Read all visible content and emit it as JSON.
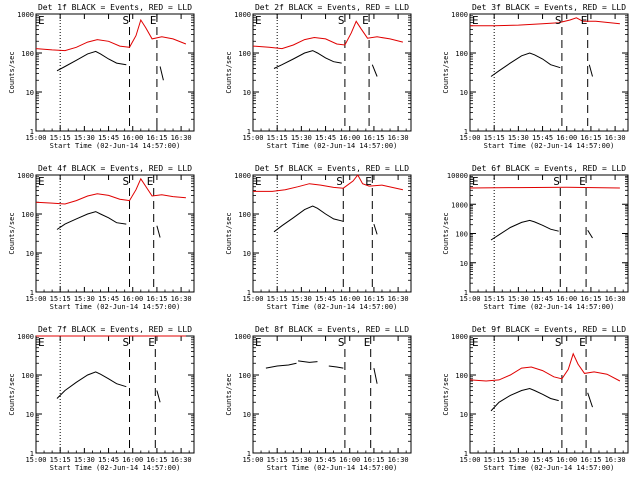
{
  "figure": {
    "xlabel": "Start Time (02-Jun-14 14:57:00)",
    "ylabel": "Counts/sec",
    "colors": {
      "events": "#000000",
      "lld": "#e00000",
      "axes": "#000000",
      "background": "#ffffff"
    }
  },
  "chart_data": [
    {
      "type": "line",
      "title": "Det 1f BLACK = Events, RED = LLD",
      "x_ticks": [
        "15:00",
        "15:15",
        "15:30",
        "15:45",
        "16:00",
        "16:15",
        "16:30"
      ],
      "y_ticks": [
        "1",
        "10",
        "100",
        "1000"
      ],
      "ylim": [
        1,
        1000
      ],
      "yscale": "log",
      "markers": [
        {
          "label": "E",
          "at": "15:00"
        },
        {
          "label": "S",
          "at": "15:58"
        },
        {
          "label": "E",
          "at": "16:15"
        }
      ],
      "dotted_at": "15:15",
      "dashed_at": [
        "15:58",
        "16:15"
      ],
      "series": [
        {
          "color": "red",
          "x": [
            "15:00",
            "15:10",
            "15:18",
            "15:25",
            "15:32",
            "15:38",
            "15:45",
            "15:52",
            "15:58",
            "16:02",
            "16:05",
            "16:08",
            "16:12",
            "16:18",
            "16:25",
            "16:33"
          ],
          "y": [
            130,
            120,
            115,
            140,
            190,
            220,
            200,
            150,
            140,
            280,
            700,
            450,
            230,
            260,
            230,
            170
          ]
        },
        {
          "color": "black",
          "x": [
            "15:13",
            "15:18",
            "15:25",
            "15:32",
            "15:37",
            "15:40",
            "15:45",
            "15:50",
            "15:56"
          ],
          "y": [
            35,
            45,
            65,
            95,
            110,
            95,
            70,
            55,
            50
          ]
        },
        {
          "color": "black",
          "x": [
            "16:17",
            "16:19"
          ],
          "y": [
            45,
            20
          ]
        }
      ]
    },
    {
      "type": "line",
      "title": "Det 2f BLACK = Events, RED = LLD",
      "x_ticks": [
        "15:00",
        "15:15",
        "15:30",
        "15:45",
        "16:00",
        "16:15",
        "16:30"
      ],
      "y_ticks": [
        "1",
        "10",
        "100",
        "1000"
      ],
      "ylim": [
        1,
        1000
      ],
      "yscale": "log",
      "markers": [
        {
          "label": "E",
          "at": "15:00"
        },
        {
          "label": "S",
          "at": "15:57"
        },
        {
          "label": "E",
          "at": "16:12"
        }
      ],
      "dotted_at": "15:15",
      "dashed_at": [
        "15:57",
        "16:12"
      ],
      "series": [
        {
          "color": "red",
          "x": [
            "15:00",
            "15:10",
            "15:18",
            "15:25",
            "15:32",
            "15:38",
            "15:45",
            "15:52",
            "15:57",
            "16:01",
            "16:04",
            "16:07",
            "16:11",
            "16:17",
            "16:25",
            "16:33"
          ],
          "y": [
            150,
            140,
            130,
            160,
            220,
            250,
            230,
            170,
            160,
            330,
            650,
            420,
            240,
            260,
            230,
            190
          ]
        },
        {
          "color": "black",
          "x": [
            "15:13",
            "15:18",
            "15:25",
            "15:32",
            "15:37",
            "15:40",
            "15:45",
            "15:50",
            "15:55"
          ],
          "y": [
            40,
            50,
            70,
            100,
            115,
            100,
            75,
            60,
            55
          ]
        },
        {
          "color": "black",
          "x": [
            "16:14",
            "16:17"
          ],
          "y": [
            50,
            25
          ]
        }
      ]
    },
    {
      "type": "line",
      "title": "Det 3f BLACK = Events, RED = LLD",
      "x_ticks": [
        "15:00",
        "15:15",
        "15:30",
        "15:45",
        "16:00",
        "16:15",
        "16:30"
      ],
      "y_ticks": [
        "1",
        "10",
        "100",
        "1000"
      ],
      "ylim": [
        1,
        1000
      ],
      "yscale": "log",
      "markers": [
        {
          "label": "E",
          "at": "15:00"
        },
        {
          "label": "S",
          "at": "15:57"
        },
        {
          "label": "E",
          "at": "16:13"
        }
      ],
      "dotted_at": "15:15",
      "dashed_at": [
        "15:57",
        "16:13"
      ],
      "series": [
        {
          "color": "red",
          "x": [
            "15:00",
            "15:15",
            "15:30",
            "15:45",
            "15:55",
            "16:02",
            "16:06",
            "16:10",
            "16:18",
            "16:33"
          ],
          "y": [
            500,
            500,
            520,
            560,
            600,
            700,
            800,
            650,
            650,
            560
          ]
        },
        {
          "color": "black",
          "x": [
            "15:13",
            "15:18",
            "15:25",
            "15:32",
            "15:37",
            "15:40",
            "15:45",
            "15:50",
            "15:56"
          ],
          "y": [
            25,
            35,
            55,
            85,
            100,
            90,
            70,
            50,
            42
          ]
        },
        {
          "color": "black",
          "x": [
            "16:14",
            "16:16"
          ],
          "y": [
            50,
            25
          ]
        }
      ]
    },
    {
      "type": "line",
      "title": "Det 4f BLACK = Events, RED = LLD",
      "x_ticks": [
        "15:00",
        "15:15",
        "15:30",
        "15:45",
        "16:00",
        "16:15",
        "16:30"
      ],
      "y_ticks": [
        "1",
        "10",
        "100",
        "1000"
      ],
      "ylim": [
        1,
        1000
      ],
      "yscale": "log",
      "markers": [
        {
          "label": "E",
          "at": "15:00"
        },
        {
          "label": "S",
          "at": "15:58"
        },
        {
          "label": "E",
          "at": "16:13"
        }
      ],
      "dotted_at": "15:15",
      "dashed_at": [
        "15:58",
        "16:13"
      ],
      "series": [
        {
          "color": "red",
          "x": [
            "15:00",
            "15:10",
            "15:18",
            "15:25",
            "15:32",
            "15:38",
            "15:45",
            "15:52",
            "15:58",
            "16:02",
            "16:05",
            "16:08",
            "16:12",
            "16:18",
            "16:25",
            "16:33"
          ],
          "y": [
            200,
            190,
            180,
            220,
            290,
            330,
            300,
            240,
            220,
            420,
            800,
            520,
            290,
            310,
            280,
            260
          ]
        },
        {
          "color": "black",
          "x": [
            "15:13",
            "15:18",
            "15:25",
            "15:32",
            "15:37",
            "15:40",
            "15:45",
            "15:50",
            "15:56"
          ],
          "y": [
            40,
            55,
            75,
            100,
            115,
            100,
            80,
            60,
            55
          ]
        },
        {
          "color": "black",
          "x": [
            "16:15",
            "16:17"
          ],
          "y": [
            50,
            25
          ]
        }
      ]
    },
    {
      "type": "line",
      "title": "Det 5f BLACK = Events, RED = LLD",
      "x_ticks": [
        "15:00",
        "15:15",
        "15:30",
        "15:45",
        "16:00",
        "16:15",
        "16:30"
      ],
      "y_ticks": [
        "1",
        "10",
        "100",
        "1000"
      ],
      "ylim": [
        1,
        1000
      ],
      "yscale": "log",
      "markers": [
        {
          "label": "E",
          "at": "15:00"
        },
        {
          "label": "S",
          "at": "15:56"
        },
        {
          "label": "E",
          "at": "16:14"
        }
      ],
      "dotted_at": "15:15",
      "dashed_at": [
        "15:56",
        "16:14"
      ],
      "series": [
        {
          "color": "red",
          "x": [
            "15:00",
            "15:12",
            "15:20",
            "15:28",
            "15:35",
            "15:42",
            "15:50",
            "15:56",
            "16:02",
            "16:05",
            "16:08",
            "16:12",
            "16:20",
            "16:33"
          ],
          "y": [
            380,
            380,
            420,
            500,
            600,
            550,
            480,
            460,
            700,
            1000,
            600,
            520,
            550,
            420
          ]
        },
        {
          "color": "black",
          "x": [
            "15:13",
            "15:18",
            "15:25",
            "15:32",
            "15:37",
            "15:40",
            "15:45",
            "15:50",
            "15:56"
          ],
          "y": [
            35,
            50,
            80,
            130,
            160,
            140,
            100,
            75,
            65
          ]
        },
        {
          "color": "black",
          "x": [
            "16:15",
            "16:17"
          ],
          "y": [
            55,
            30
          ]
        }
      ]
    },
    {
      "type": "line",
      "title": "Det 6f BLACK = Events, RED = LLD",
      "x_ticks": [
        "15:00",
        "15:15",
        "15:30",
        "15:45",
        "16:00",
        "16:15",
        "16:30"
      ],
      "y_ticks": [
        "1",
        "10",
        "100",
        "1000"
      ],
      "ylim": [
        1,
        10000
      ],
      "yscale": "log",
      "markers": [
        {
          "label": "E",
          "at": "15:00"
        },
        {
          "label": "S",
          "at": "15:56"
        },
        {
          "label": "E",
          "at": "16:12"
        }
      ],
      "dotted_at": "15:15",
      "dashed_at": [
        "15:56",
        "16:12"
      ],
      "series": [
        {
          "color": "red",
          "x": [
            "15:00",
            "15:30",
            "16:00",
            "16:33"
          ],
          "y": [
            3600,
            3700,
            3800,
            3600
          ]
        },
        {
          "color": "black",
          "x": [
            "15:13",
            "15:18",
            "15:25",
            "15:32",
            "15:37",
            "15:40",
            "15:45",
            "15:50",
            "15:55"
          ],
          "y": [
            60,
            90,
            160,
            240,
            280,
            250,
            190,
            140,
            120
          ]
        },
        {
          "color": "black",
          "x": [
            "16:13",
            "16:16"
          ],
          "y": [
            130,
            70
          ]
        }
      ]
    },
    {
      "type": "line",
      "title": "Det 7f BLACK = Events, RED = LLD",
      "x_ticks": [
        "15:00",
        "15:15",
        "15:30",
        "15:45",
        "16:00",
        "16:15",
        "16:30"
      ],
      "y_ticks": [
        "1",
        "10",
        "100",
        "1000"
      ],
      "ylim": [
        1,
        1000
      ],
      "yscale": "log",
      "markers": [
        {
          "label": "E",
          "at": "15:00"
        },
        {
          "label": "S",
          "at": "15:58"
        },
        {
          "label": "E",
          "at": "16:14"
        }
      ],
      "dotted_at": "15:15",
      "dashed_at": [
        "15:58",
        "16:14"
      ],
      "series": [
        {
          "color": "red",
          "x": [
            "15:00",
            "15:30",
            "16:00",
            "16:33"
          ],
          "y": [
            1050,
            1080,
            1100,
            1050
          ]
        },
        {
          "color": "black",
          "x": [
            "15:13",
            "15:18",
            "15:25",
            "15:32",
            "15:37",
            "15:40",
            "15:45",
            "15:50",
            "15:56"
          ],
          "y": [
            25,
            40,
            65,
            100,
            120,
            105,
            80,
            60,
            50
          ]
        },
        {
          "color": "black",
          "x": [
            "16:15",
            "16:17"
          ],
          "y": [
            40,
            20
          ]
        }
      ]
    },
    {
      "type": "line",
      "title": "Det 8f BLACK = Events, RED = LLD",
      "x_ticks": [
        "15:00",
        "15:15",
        "15:30",
        "15:45",
        "16:00",
        "16:15",
        "16:30"
      ],
      "y_ticks": [
        "1",
        "10",
        "100",
        "1000"
      ],
      "ylim": [
        1,
        1000
      ],
      "yscale": "log",
      "markers": [
        {
          "label": "E",
          "at": "15:00"
        },
        {
          "label": "S",
          "at": "15:57"
        },
        {
          "label": "E",
          "at": "16:13"
        }
      ],
      "dotted_at": null,
      "dashed_at": [
        "15:57",
        "16:13"
      ],
      "series": [
        {
          "color": "black",
          "x": [
            "15:08",
            "15:15",
            "15:22",
            "15:27"
          ],
          "y": [
            150,
            170,
            180,
            200
          ]
        },
        {
          "color": "black",
          "x": [
            "15:28",
            "15:35",
            "15:40"
          ],
          "y": [
            230,
            210,
            220
          ]
        },
        {
          "color": "black",
          "x": [
            "15:47",
            "15:52",
            "15:56"
          ],
          "y": [
            170,
            160,
            150
          ]
        },
        {
          "color": "black",
          "x": [
            "16:15",
            "16:17"
          ],
          "y": [
            150,
            60
          ]
        }
      ]
    },
    {
      "type": "line",
      "title": "Det 9f BLACK = Events, RED = LLD",
      "x_ticks": [
        "15:00",
        "15:15",
        "15:30",
        "15:45",
        "16:00",
        "16:15",
        "16:30"
      ],
      "y_ticks": [
        "1",
        "10",
        "100",
        "1000"
      ],
      "ylim": [
        1,
        1000
      ],
      "yscale": "log",
      "markers": [
        {
          "label": "E",
          "at": "15:00"
        },
        {
          "label": "S",
          "at": "15:57"
        },
        {
          "label": "E",
          "at": "16:12"
        }
      ],
      "dotted_at": "15:15",
      "dashed_at": [
        "15:57",
        "16:12"
      ],
      "series": [
        {
          "color": "red",
          "x": [
            "15:00",
            "15:10",
            "15:18",
            "15:25",
            "15:32",
            "15:38",
            "15:45",
            "15:52",
            "15:57",
            "16:01",
            "16:04",
            "16:07",
            "16:11",
            "16:17",
            "16:25",
            "16:33"
          ],
          "y": [
            75,
            70,
            75,
            100,
            150,
            160,
            130,
            90,
            80,
            140,
            350,
            190,
            110,
            120,
            105,
            70
          ]
        },
        {
          "color": "black",
          "x": [
            "15:13",
            "15:18",
            "15:25",
            "15:32",
            "15:37",
            "15:40",
            "15:45",
            "15:50",
            "15:55"
          ],
          "y": [
            12,
            20,
            30,
            40,
            45,
            40,
            32,
            25,
            22
          ]
        },
        {
          "color": "black",
          "x": [
            "16:13",
            "16:16"
          ],
          "y": [
            35,
            15
          ]
        }
      ]
    }
  ]
}
